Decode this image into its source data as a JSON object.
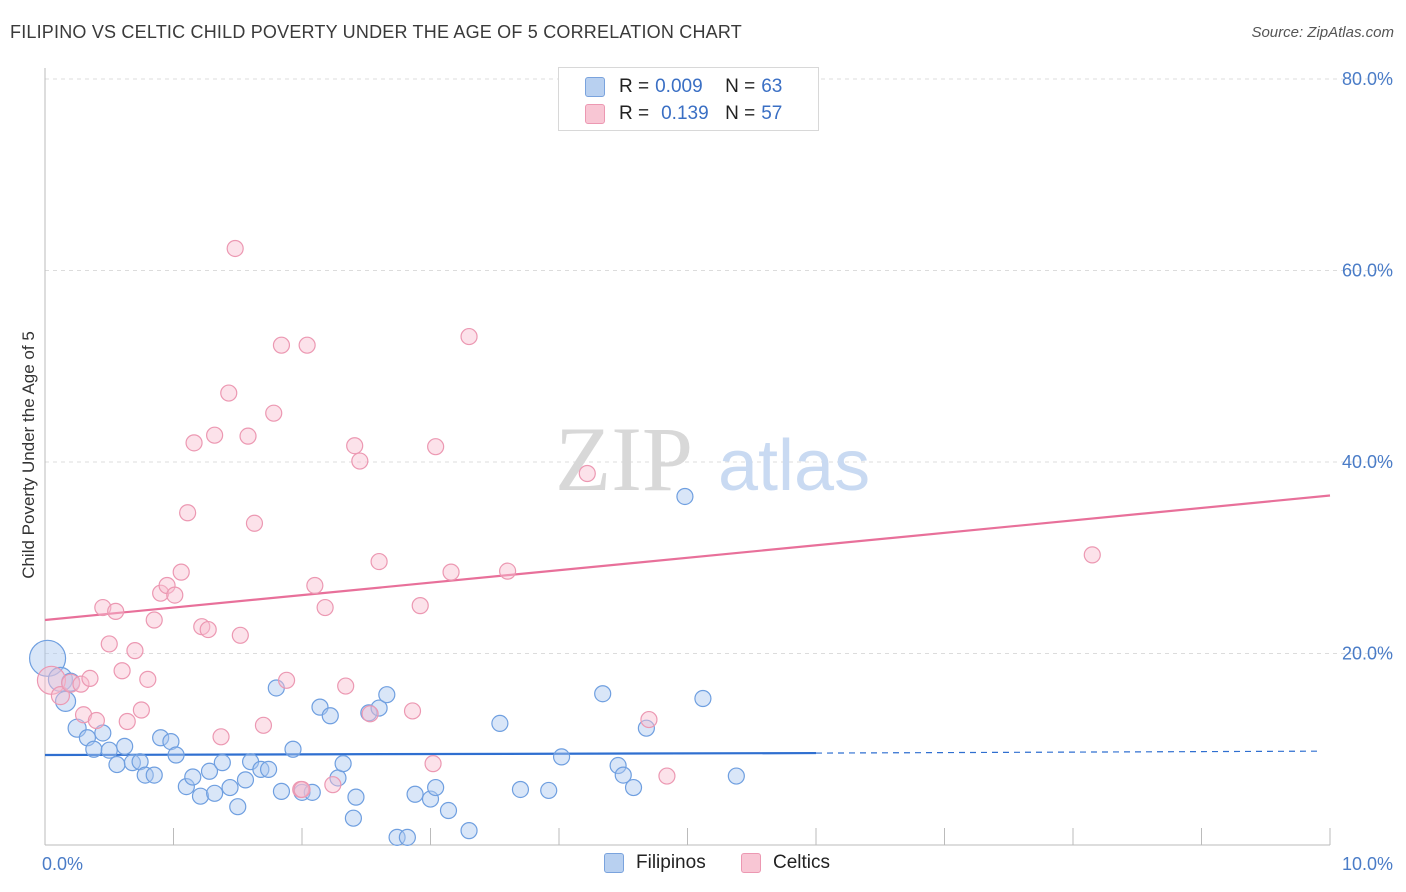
{
  "header": {
    "title": "FILIPINO VS CELTIC CHILD POVERTY UNDER THE AGE OF 5 CORRELATION CHART",
    "source": "Source: ZipAtlas.com"
  },
  "watermark": {
    "zip": "ZIP",
    "atlas": "atlas"
  },
  "legend": {
    "rows": [
      {
        "r_label": "R =",
        "r_value": "0.009",
        "n_label": "N =",
        "n_value": "63",
        "color": "#b8d0f0",
        "border": "#7aa3dd"
      },
      {
        "r_label": "R =",
        "r_value": "0.139",
        "n_label": "N =",
        "n_value": "57",
        "color": "#f8c6d4",
        "border": "#ec98b2"
      }
    ],
    "bottom": [
      {
        "label": "Filipinos",
        "color": "#b8d0f0",
        "border": "#7aa3dd"
      },
      {
        "label": "Celtics",
        "color": "#f8c6d4",
        "border": "#ec98b2"
      }
    ]
  },
  "chart_data": {
    "type": "scatter",
    "title": "FILIPINO VS CELTIC CHILD POVERTY UNDER THE AGE OF 5 CORRELATION CHART",
    "xlabel": "",
    "ylabel": "Child Poverty Under the Age of 5",
    "xlim": [
      0,
      10
    ],
    "ylim": [
      0,
      80
    ],
    "x_tick_labels": [
      "0.0%",
      "10.0%"
    ],
    "y_ticks": [
      20,
      40,
      60,
      80
    ],
    "y_tick_labels": [
      "20.0%",
      "40.0%",
      "60.0%",
      "80.0%"
    ],
    "grid": true,
    "series": [
      {
        "name": "Filipinos",
        "color": "#6f9fe0",
        "fill": "rgba(170,200,240,0.45)",
        "trend": {
          "x0": 0,
          "y0": 9.4,
          "x1": 6.0,
          "y1": 9.6,
          "dashed_to_x": 9.9,
          "dashed_to_y": 9.8,
          "color": "#2f6fd0"
        },
        "points": [
          [
            0.02,
            19.5,
            18
          ],
          [
            0.12,
            17.3,
            12
          ],
          [
            0.16,
            15.0,
            10
          ],
          [
            0.2,
            17.0,
            9
          ],
          [
            0.25,
            12.2,
            9
          ],
          [
            0.33,
            11.2,
            8
          ],
          [
            0.38,
            10.0,
            8
          ],
          [
            0.45,
            11.7,
            8
          ],
          [
            0.5,
            9.9,
            8
          ],
          [
            0.56,
            8.4,
            8
          ],
          [
            0.62,
            10.3,
            8
          ],
          [
            0.68,
            8.6,
            8
          ],
          [
            0.74,
            8.7,
            8
          ],
          [
            0.78,
            7.3,
            8
          ],
          [
            0.85,
            7.3,
            8
          ],
          [
            0.9,
            11.2,
            8
          ],
          [
            0.98,
            10.8,
            8
          ],
          [
            1.02,
            9.4,
            8
          ],
          [
            1.1,
            6.1,
            8
          ],
          [
            1.15,
            7.1,
            8
          ],
          [
            1.21,
            5.1,
            8
          ],
          [
            1.28,
            7.7,
            8
          ],
          [
            1.32,
            5.4,
            8
          ],
          [
            1.38,
            8.6,
            8
          ],
          [
            1.44,
            6.0,
            8
          ],
          [
            1.5,
            4.0,
            8
          ],
          [
            1.56,
            6.8,
            8
          ],
          [
            1.6,
            8.7,
            8
          ],
          [
            1.68,
            7.9,
            8
          ],
          [
            1.74,
            7.9,
            8
          ],
          [
            1.8,
            16.4,
            8
          ],
          [
            1.84,
            5.6,
            8
          ],
          [
            1.93,
            10.0,
            8
          ],
          [
            2.0,
            5.5,
            8
          ],
          [
            2.08,
            5.5,
            8
          ],
          [
            2.14,
            14.4,
            8
          ],
          [
            2.22,
            13.5,
            8
          ],
          [
            2.28,
            7.0,
            8
          ],
          [
            2.32,
            8.5,
            8
          ],
          [
            2.42,
            5.0,
            8
          ],
          [
            2.52,
            13.8,
            8
          ],
          [
            2.6,
            14.3,
            8
          ],
          [
            2.66,
            15.7,
            8
          ],
          [
            2.74,
            0.8,
            8
          ],
          [
            2.82,
            0.8,
            8
          ],
          [
            2.88,
            5.3,
            8
          ],
          [
            3.0,
            4.8,
            8
          ],
          [
            3.04,
            6.0,
            8
          ],
          [
            3.14,
            3.6,
            8
          ],
          [
            3.3,
            1.5,
            8
          ],
          [
            3.54,
            12.7,
            8
          ],
          [
            3.7,
            5.8,
            8
          ],
          [
            3.92,
            5.7,
            8
          ],
          [
            4.02,
            9.2,
            8
          ],
          [
            4.34,
            15.8,
            8
          ],
          [
            4.46,
            8.3,
            8
          ],
          [
            4.5,
            7.3,
            8
          ],
          [
            4.58,
            6.0,
            8
          ],
          [
            4.68,
            12.2,
            8
          ],
          [
            4.98,
            36.4,
            8
          ],
          [
            5.12,
            15.3,
            8
          ],
          [
            5.38,
            7.2,
            8
          ],
          [
            2.4,
            2.8,
            8
          ]
        ]
      },
      {
        "name": "Celtics",
        "color": "#ec98b2",
        "fill": "rgba(248,190,208,0.45)",
        "trend": {
          "x0": 0,
          "y0": 23.5,
          "x1": 10.0,
          "y1": 36.5,
          "color": "#e8709a"
        },
        "points": [
          [
            0.05,
            17.2,
            14
          ],
          [
            0.12,
            15.6,
            9
          ],
          [
            0.2,
            16.9,
            9
          ],
          [
            0.28,
            16.8,
            8
          ],
          [
            0.3,
            13.6,
            8
          ],
          [
            0.35,
            17.4,
            8
          ],
          [
            0.4,
            13.0,
            8
          ],
          [
            0.45,
            24.8,
            8
          ],
          [
            0.5,
            21.0,
            8
          ],
          [
            0.55,
            24.4,
            8
          ],
          [
            0.6,
            18.2,
            8
          ],
          [
            0.64,
            12.9,
            8
          ],
          [
            0.7,
            20.3,
            8
          ],
          [
            0.75,
            14.1,
            8
          ],
          [
            0.8,
            17.3,
            8
          ],
          [
            0.85,
            23.5,
            8
          ],
          [
            0.9,
            26.3,
            8
          ],
          [
            0.95,
            27.1,
            8
          ],
          [
            1.01,
            26.1,
            8
          ],
          [
            1.06,
            28.5,
            8
          ],
          [
            1.11,
            34.7,
            8
          ],
          [
            1.16,
            42.0,
            8
          ],
          [
            1.22,
            22.8,
            8
          ],
          [
            1.27,
            22.5,
            8
          ],
          [
            1.32,
            42.8,
            8
          ],
          [
            1.37,
            11.3,
            8
          ],
          [
            1.43,
            47.2,
            8
          ],
          [
            1.48,
            62.3,
            8
          ],
          [
            1.52,
            21.9,
            8
          ],
          [
            1.58,
            42.7,
            8
          ],
          [
            1.63,
            33.6,
            8
          ],
          [
            1.7,
            12.5,
            8
          ],
          [
            1.78,
            45.1,
            8
          ],
          [
            1.84,
            52.2,
            8
          ],
          [
            1.88,
            17.2,
            8
          ],
          [
            1.99,
            5.8,
            8
          ],
          [
            2.04,
            52.2,
            8
          ],
          [
            2.1,
            27.1,
            8
          ],
          [
            2.18,
            24.8,
            8
          ],
          [
            2.24,
            6.3,
            8
          ],
          [
            2.34,
            16.6,
            8
          ],
          [
            2.41,
            41.7,
            8
          ],
          [
            2.45,
            40.1,
            8
          ],
          [
            2.53,
            13.7,
            8
          ],
          [
            2.6,
            29.6,
            8
          ],
          [
            2.86,
            14.0,
            8
          ],
          [
            2.92,
            25.0,
            8
          ],
          [
            3.02,
            8.5,
            8
          ],
          [
            3.04,
            41.6,
            8
          ],
          [
            3.16,
            28.5,
            8
          ],
          [
            3.3,
            53.1,
            8
          ],
          [
            3.6,
            28.6,
            8
          ],
          [
            4.22,
            38.8,
            8
          ],
          [
            4.7,
            13.1,
            8
          ],
          [
            4.84,
            7.2,
            8
          ],
          [
            8.15,
            30.3,
            8
          ],
          [
            2.0,
            5.8,
            8
          ]
        ]
      }
    ]
  }
}
